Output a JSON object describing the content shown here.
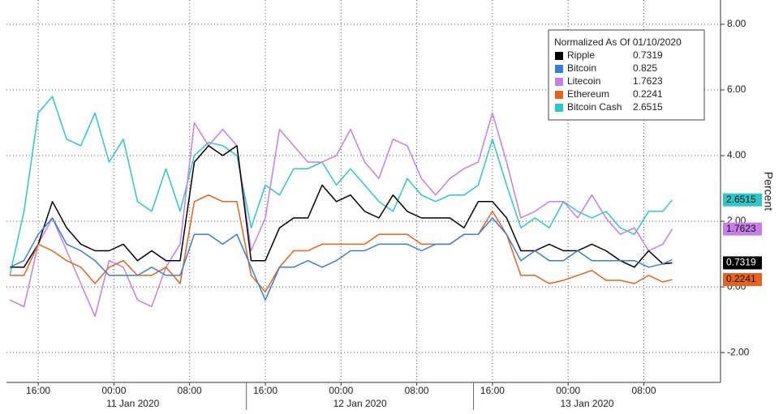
{
  "chart_data": {
    "type": "line",
    "legend_title": "Normalized As Of 01/10/2020",
    "y_label": "Percent",
    "x": [
      13,
      14.5,
      16,
      17.5,
      19,
      20.5,
      22,
      23.5,
      25,
      26.5,
      28,
      29.5,
      31,
      32.5,
      34,
      35.5,
      37,
      38.5,
      40,
      41.5,
      43,
      44.5,
      46,
      47.5,
      49,
      50.5,
      52,
      53.5,
      55,
      56.5,
      58,
      59.5,
      61,
      62.5,
      64,
      65.5,
      67,
      68.5,
      70,
      71.5,
      73,
      74.5,
      76,
      77.5,
      79,
      80.5,
      82,
      83
    ],
    "xlim": [
      12.65,
      88.1
    ],
    "xticks": [
      {
        "value": 16,
        "label": "16:00"
      },
      {
        "value": 24,
        "label": "00:00"
      },
      {
        "value": 32,
        "label": "08:00"
      },
      {
        "value": 40,
        "label": "16:00"
      },
      {
        "value": 48,
        "label": "00:00"
      },
      {
        "value": 56,
        "label": "08:00"
      },
      {
        "value": 64,
        "label": "16:00"
      },
      {
        "value": 72,
        "label": "00:00"
      },
      {
        "value": 80,
        "label": "08:00"
      }
    ],
    "day_labels": [
      {
        "value": 26,
        "label": "11 Jan 2020"
      },
      {
        "value": 50,
        "label": "12 Jan 2020"
      },
      {
        "value": 74,
        "label": "13 Jan 2020"
      }
    ],
    "day_dividers": [
      38,
      62
    ],
    "ylim": [
      -2.91,
      8.74
    ],
    "yticks": [
      {
        "value": 8,
        "label": "8.00"
      },
      {
        "value": 6,
        "label": "6.00"
      },
      {
        "value": 4,
        "label": "4.00"
      },
      {
        "value": 2,
        "label": "2.00"
      },
      {
        "value": 0,
        "label": "0.00"
      },
      {
        "value": -2,
        "label": "-2.00"
      }
    ],
    "grid": true,
    "series": [
      {
        "name": "Ripple",
        "color": "#000000",
        "last_value": 0.7319,
        "show_tag": true,
        "values": [
          0.6,
          0.6,
          1.3,
          2.6,
          1.8,
          1.3,
          1.1,
          1.1,
          1.3,
          0.8,
          1.1,
          0.8,
          0.8,
          3.8,
          4.3,
          4.0,
          4.3,
          0.8,
          0.8,
          1.8,
          2.1,
          2.1,
          3.1,
          2.6,
          2.8,
          2.3,
          2.1,
          2.8,
          2.3,
          2.1,
          2.1,
          2.1,
          1.8,
          2.6,
          2.6,
          2.1,
          1.1,
          1.1,
          1.3,
          1.1,
          1.1,
          1.3,
          1.1,
          0.8,
          0.6,
          1.1,
          0.7,
          0.73
        ]
      },
      {
        "name": "Bitcoin",
        "color": "#3a7fd5",
        "last_value": 0.825,
        "show_tag": false,
        "values": [
          0.6,
          0.8,
          1.6,
          2.1,
          1.3,
          1.1,
          0.8,
          0.35,
          0.35,
          0.35,
          0.6,
          0.35,
          0.35,
          1.6,
          1.6,
          1.3,
          1.6,
          0.6,
          -0.4,
          0.6,
          0.6,
          0.8,
          0.6,
          0.8,
          1.1,
          1.1,
          1.3,
          1.3,
          1.3,
          1.1,
          1.3,
          1.3,
          1.6,
          1.6,
          2.1,
          1.6,
          0.8,
          1.1,
          0.8,
          0.8,
          1.1,
          0.8,
          0.8,
          0.8,
          0.8,
          0.6,
          0.7,
          0.83
        ]
      },
      {
        "name": "Litecoin",
        "color": "#c77ee8",
        "last_value": 1.7623,
        "show_tag": true,
        "values": [
          -0.4,
          -0.6,
          1.3,
          2.1,
          1.1,
          0.1,
          -0.9,
          0.8,
          0.6,
          -0.4,
          -0.6,
          0.6,
          1.3,
          5.0,
          4.3,
          4.8,
          4.3,
          1.1,
          2.1,
          4.8,
          4.3,
          3.8,
          3.8,
          4.0,
          4.8,
          3.8,
          3.3,
          4.5,
          4.3,
          3.3,
          2.8,
          3.3,
          3.6,
          3.8,
          5.3,
          3.8,
          2.1,
          2.3,
          2.6,
          2.6,
          2.1,
          2.8,
          2.1,
          1.6,
          1.8,
          1.1,
          1.3,
          1.76
        ]
      },
      {
        "name": "Ethereum",
        "color": "#e8621c",
        "last_value": 0.2241,
        "show_tag": true,
        "values": [
          0.35,
          0.35,
          1.3,
          1.1,
          0.8,
          0.6,
          0.1,
          0.6,
          0.8,
          0.35,
          0.35,
          0.6,
          0.1,
          2.6,
          2.8,
          2.6,
          2.6,
          0.35,
          -0.15,
          0.6,
          1.1,
          1.1,
          1.3,
          1.3,
          1.3,
          1.3,
          1.6,
          1.6,
          1.6,
          1.3,
          1.3,
          1.3,
          1.6,
          1.6,
          2.3,
          1.6,
          0.35,
          0.35,
          0.1,
          0.2,
          0.35,
          0.5,
          0.2,
          0.2,
          0.1,
          0.35,
          0.15,
          0.22
        ]
      },
      {
        "name": "Bitcoin Cash",
        "color": "#2ec7c9",
        "last_value": 2.6515,
        "show_tag": true,
        "values": [
          0.35,
          2.3,
          5.3,
          5.8,
          4.5,
          4.3,
          5.3,
          3.8,
          4.5,
          2.6,
          2.3,
          3.6,
          2.3,
          4.0,
          4.4,
          4.3,
          4.0,
          1.8,
          3.1,
          2.8,
          3.6,
          3.6,
          3.8,
          3.1,
          3.6,
          3.1,
          2.6,
          2.3,
          3.3,
          2.8,
          2.6,
          2.8,
          2.8,
          3.1,
          4.5,
          3.1,
          1.8,
          2.1,
          1.8,
          2.6,
          2.3,
          2.1,
          2.3,
          1.8,
          1.6,
          2.3,
          2.3,
          2.65
        ]
      }
    ]
  }
}
